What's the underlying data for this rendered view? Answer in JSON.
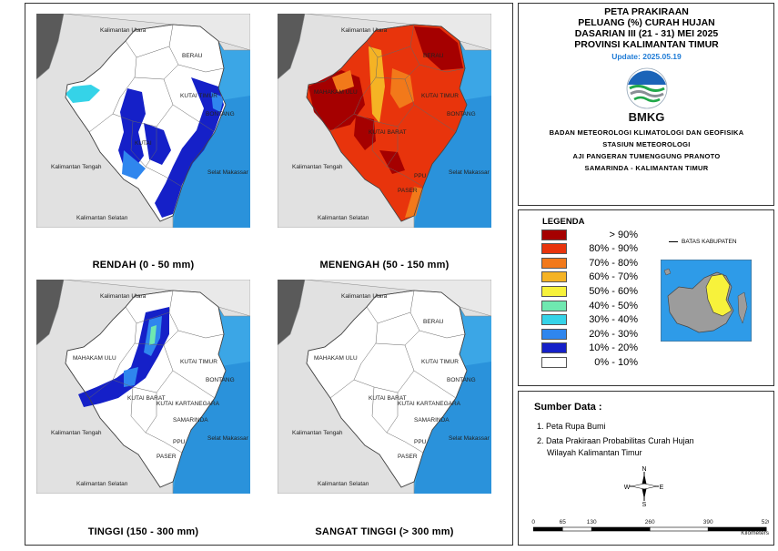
{
  "maps": [
    {
      "id": "rendah",
      "caption": "RENDAH (0 - 50 mm)",
      "labels": [
        "Kalimantan Utara",
        "BERAU",
        "KUTAI TIMUR",
        "BONTANG",
        "KUTAI",
        "Kalimantan Tengah",
        "Selat Makassar",
        "Kalimantan Selatan"
      ]
    },
    {
      "id": "menengah",
      "caption": "MENENGAH (50 - 150 mm)",
      "labels": [
        "Kalimantan Utara",
        "BERAU",
        "MAHAKAM ULU",
        "KUTAI TIMUR",
        "BONTANG",
        "KUTAI BARAT",
        "Kalimantan Tengah",
        "PASER",
        "PPU",
        "Selat Makassar",
        "Kalimantan Selatan"
      ]
    },
    {
      "id": "tinggi",
      "caption": "TINGGI (150 - 300 mm)",
      "labels": [
        "Kalimantan Utara",
        "MAHAKAM ULU",
        "KUTAI TIMUR",
        "BONTANG",
        "KUTAI BARAT",
        "KUTAI KARTANEGARA",
        "SAMARINDA",
        "Kalimantan Tengah",
        "PPU",
        "PASER",
        "Selat Makassar",
        "Kalimantan Selatan"
      ]
    },
    {
      "id": "sangat",
      "caption": "SANGAT TINGGI (> 300 mm)",
      "labels": [
        "Kalimantan Utara",
        "BERAU",
        "MAHAKAM ULU",
        "KUTAI TIMUR",
        "BONTANG",
        "KUTAI BARAT",
        "KUTAI KARTANEGARA",
        "SAMARINDA",
        "Kalimantan Tengah",
        "PPU",
        "PASER",
        "Selat Makassar",
        "Kalimantan Selatan"
      ]
    }
  ],
  "title": {
    "lines": [
      "PETA PRAKIRAAN",
      "PELUANG (%) CURAH HUJAN",
      "DASARIAN III (21 - 31) MEI 2025",
      "PROVINSI KALIMANTAN TIMUR"
    ],
    "update": "Update: 2025.05.19",
    "logo_text": "BMKG",
    "org_lines": [
      "BADAN METEOROLOGI KLIMATOLOGI DAN GEOFISIKA",
      "STASIUN METEOROLOGI",
      "AJI PANGERAN TUMENGGUNG PRANOTO",
      "SAMARINDA - KALIMANTAN TIMUR"
    ]
  },
  "legend": {
    "title": "LEGENDA",
    "items": [
      {
        "label": "> 90%",
        "color": "#a50000"
      },
      {
        "label": "80% - 90%",
        "color": "#e8340c"
      },
      {
        "label": "70% - 80%",
        "color": "#f2791a"
      },
      {
        "label": "60% - 70%",
        "color": "#f5b324"
      },
      {
        "label": "50% - 60%",
        "color": "#f7f23b"
      },
      {
        "label": "40% - 50%",
        "color": "#6fe8b0"
      },
      {
        "label": "30% - 40%",
        "color": "#35d3e8"
      },
      {
        "label": "20% - 30%",
        "color": "#2f86ee"
      },
      {
        "label": "10% - 20%",
        "color": "#1520c8"
      },
      {
        "label": "0% - 10%",
        "color": "#ffffff"
      }
    ],
    "batas": "BATAS KABUPATEN"
  },
  "sumber": {
    "title": "Sumber Data :",
    "items": [
      "1. Peta Rupa Bumi",
      "2. Data Prakiraan Probabilitas Curah Hujan",
      "Wilayah Kalimantan Timur"
    ]
  },
  "compass": {
    "n": "N",
    "s": "S",
    "e": "E",
    "w": "W"
  },
  "scale": {
    "ticks": [
      "0",
      "65",
      "130",
      "260",
      "390",
      "520"
    ],
    "unit": "Kilometers"
  }
}
